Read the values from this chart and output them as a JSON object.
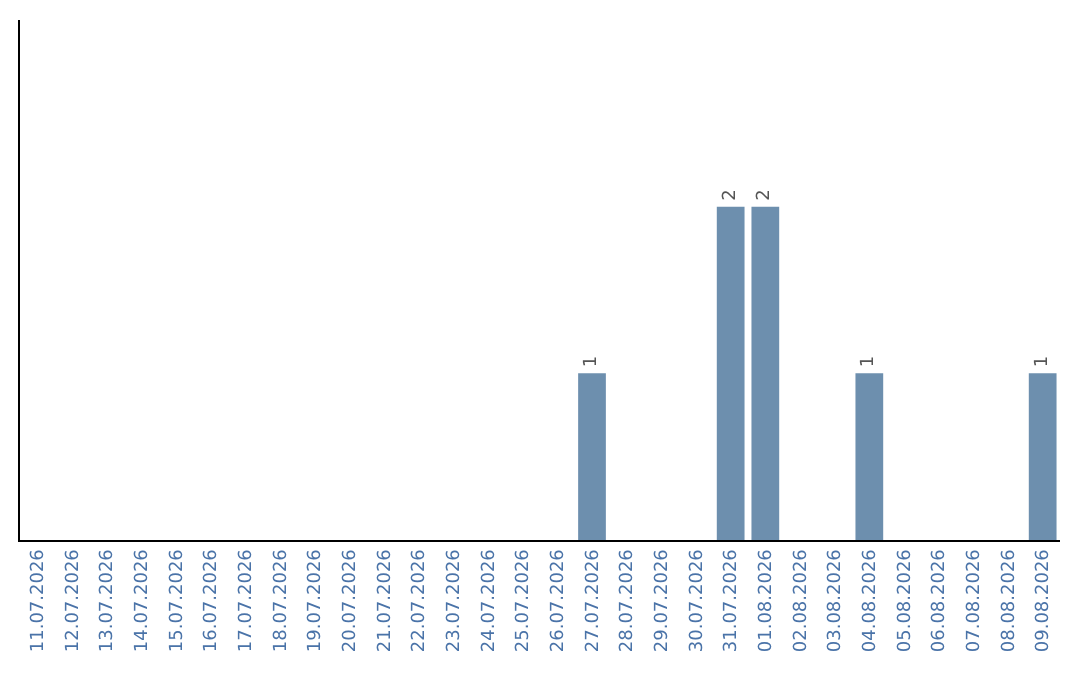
{
  "chart_data": {
    "type": "bar",
    "categories": [
      "11.07.2026",
      "12.07.2026",
      "13.07.2026",
      "14.07.2026",
      "15.07.2026",
      "16.07.2026",
      "17.07.2026",
      "18.07.2026",
      "19.07.2026",
      "20.07.2026",
      "21.07.2026",
      "22.07.2026",
      "23.07.2026",
      "24.07.2026",
      "25.07.2026",
      "26.07.2026",
      "27.07.2026",
      "28.07.2026",
      "29.07.2026",
      "30.07.2026",
      "31.07.2026",
      "01.08.2026",
      "02.08.2026",
      "03.08.2026",
      "04.08.2026",
      "05.08.2026",
      "06.08.2026",
      "07.08.2026",
      "08.08.2026",
      "09.08.2026"
    ],
    "values": [
      null,
      null,
      null,
      null,
      null,
      null,
      null,
      null,
      null,
      null,
      null,
      null,
      null,
      null,
      null,
      null,
      1,
      null,
      null,
      null,
      2,
      2,
      null,
      null,
      1,
      null,
      null,
      null,
      null,
      1
    ],
    "data_labels": true,
    "color": "#6d8fae",
    "tick_labels": "x"
  }
}
